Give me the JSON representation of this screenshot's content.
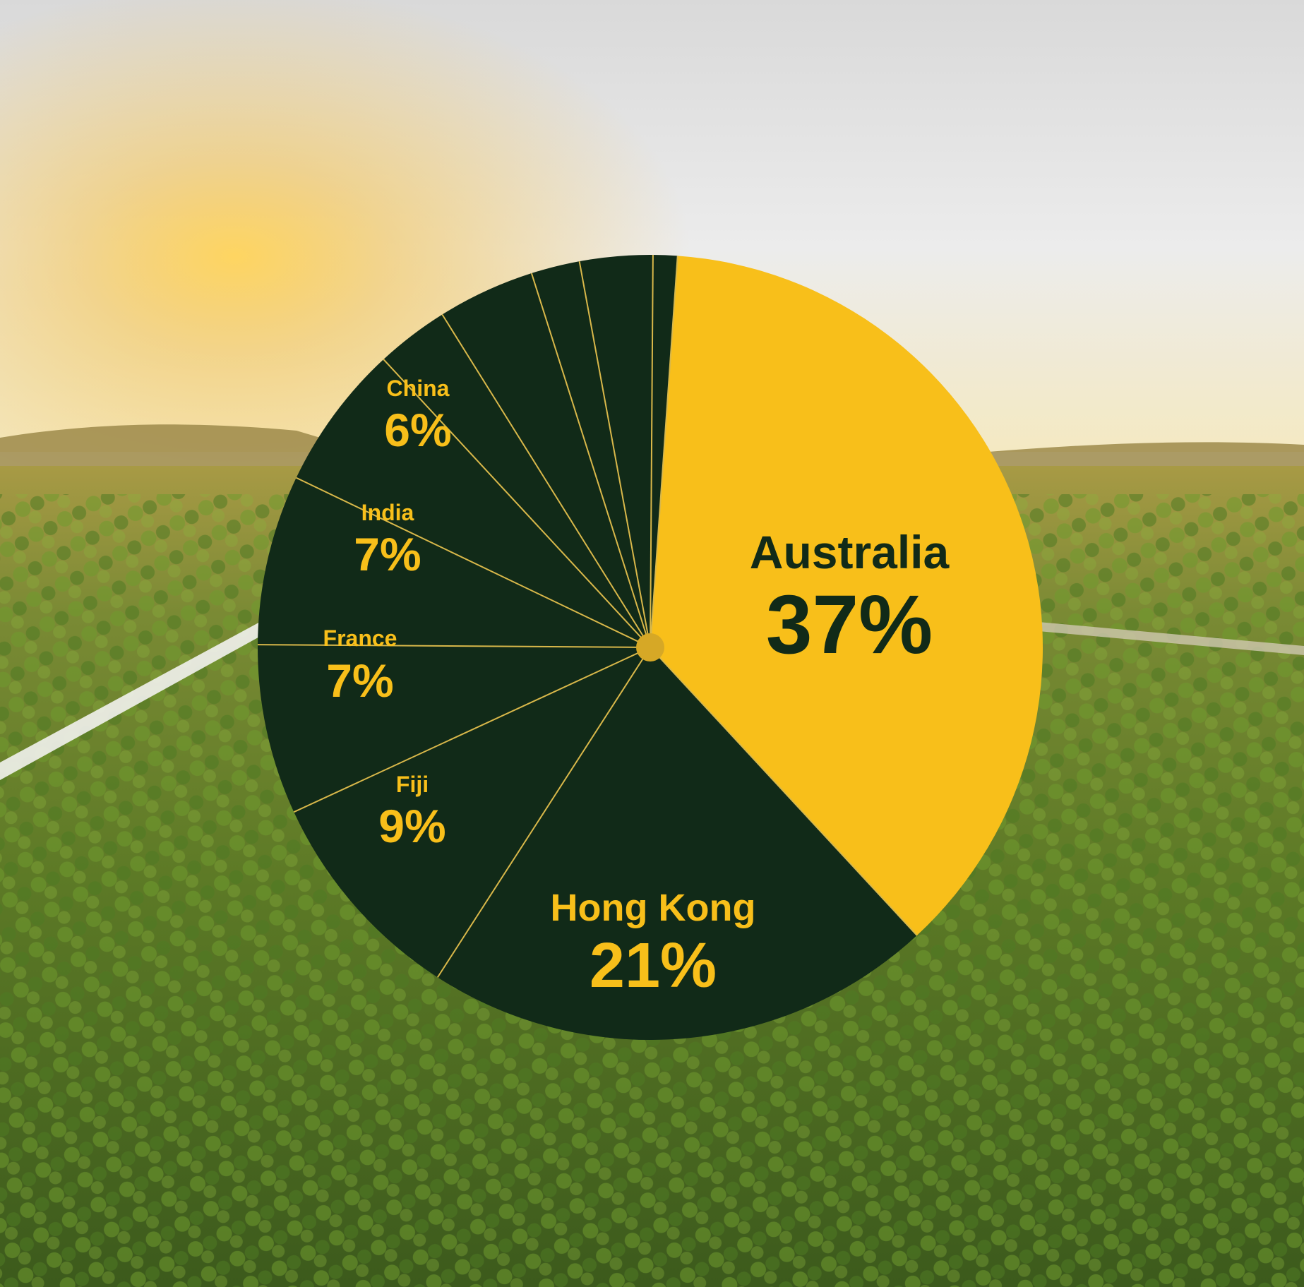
{
  "colors": {
    "sky_top": "#dcdcdc",
    "sky_horizon": "#f3e6b8",
    "sun_glow": "#f7c240",
    "field_far": "#8a8a36",
    "field_near": "#3f5d1d",
    "slice_dark": "#112a18",
    "slice_highlight": "#f8bf1a",
    "divider": "#d9b84a",
    "label_on_dark": "#f8bf1a",
    "label_on_light": "#112a18",
    "center_dot": "#d6a826"
  },
  "chart_data": {
    "type": "pie",
    "start_angle_deg": 4,
    "direction": "clockwise",
    "slices": [
      {
        "name": "Australia",
        "value": 37,
        "label": "37%",
        "color": "#f8bf1a",
        "label_color": "#112a18"
      },
      {
        "name": "Hong Kong",
        "value": 21,
        "label": "21%",
        "color": "#112a18",
        "label_color": "#f8bf1a"
      },
      {
        "name": "Fiji",
        "value": 9,
        "label": "9%",
        "color": "#112a18",
        "label_color": "#f8bf1a"
      },
      {
        "name": "France",
        "value": 7,
        "label": "7%",
        "color": "#112a18",
        "label_color": "#f8bf1a"
      },
      {
        "name": "India",
        "value": 7,
        "label": "7%",
        "color": "#112a18",
        "label_color": "#f8bf1a"
      },
      {
        "name": "China",
        "value": 6,
        "label": "6%",
        "color": "#112a18",
        "label_color": "#f8bf1a"
      },
      {
        "name": "",
        "value": 3,
        "label": "",
        "color": "#112a18"
      },
      {
        "name": "",
        "value": 4,
        "label": "",
        "color": "#112a18"
      },
      {
        "name": "",
        "value": 2,
        "label": "",
        "color": "#112a18"
      },
      {
        "name": "",
        "value": 3,
        "label": "",
        "color": "#112a18"
      },
      {
        "name": "",
        "value": 1,
        "label": "",
        "color": "#112a18"
      }
    ]
  }
}
